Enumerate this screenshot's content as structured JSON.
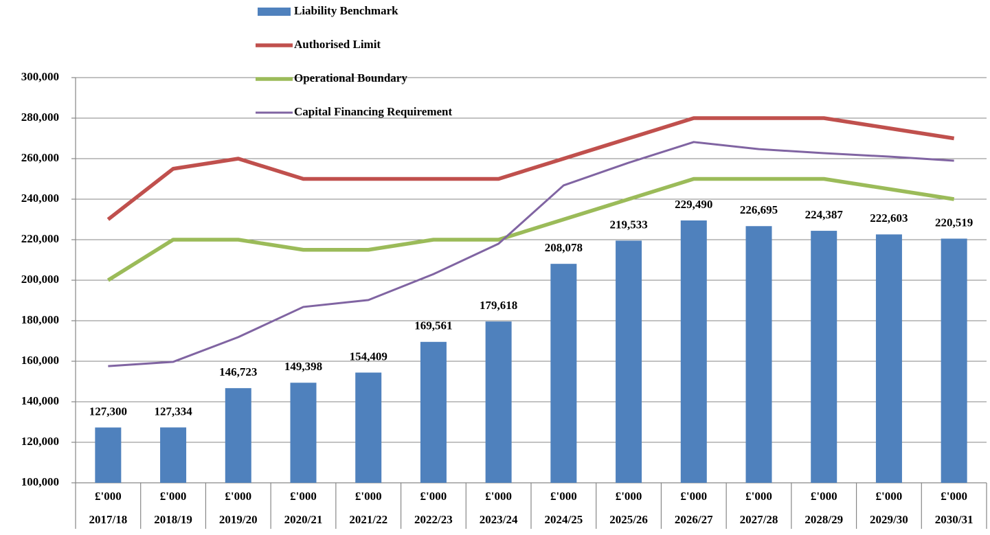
{
  "chart_data": {
    "type": "bar-line",
    "categories": [
      "2017/18",
      "2018/19",
      "2019/20",
      "2020/21",
      "2021/22",
      "2022/23",
      "2023/24",
      "2024/25",
      "2025/26",
      "2026/27",
      "2027/28",
      "2028/29",
      "2029/30",
      "2030/31"
    ],
    "category_unit": "£'000",
    "series": [
      {
        "name": "Liability Benchmark",
        "type": "bar",
        "color": "#4f81bd",
        "values": [
          127300,
          127334,
          146723,
          149398,
          154409,
          169561,
          179618,
          208078,
          219533,
          229490,
          226695,
          224387,
          222603,
          220519
        ],
        "value_labels": [
          "127,300",
          "127,334",
          "146,723",
          "149,398",
          "154,409",
          "169,561",
          "179,618",
          "208,078",
          "219,533",
          "229,490",
          "226,695",
          "224,387",
          "222,603",
          "220,519"
        ]
      },
      {
        "name": "Authorised Limit",
        "type": "line",
        "color": "#c0504d",
        "values": [
          230000,
          255000,
          260000,
          250000,
          250000,
          250000,
          250000,
          260000,
          270000,
          280000,
          280000,
          280000,
          275000,
          270000
        ]
      },
      {
        "name": "Operational Boundary",
        "type": "line",
        "color": "#9bbb59",
        "values": [
          200000,
          220000,
          220000,
          215000,
          215000,
          220000,
          220000,
          230000,
          240000,
          250000,
          250000,
          250000,
          245000,
          240000
        ]
      },
      {
        "name": "Capital Financing Requirement",
        "type": "line",
        "color": "#8064a2",
        "values": [
          157600,
          159700,
          171900,
          186800,
          190200,
          203000,
          218000,
          246800,
          258000,
          268200,
          264700,
          262700,
          261000,
          259000
        ]
      }
    ],
    "ylim": [
      100000,
      300000
    ],
    "yticks": [
      {
        "value": 100000,
        "label": "100,000"
      },
      {
        "value": 120000,
        "label": "120,000"
      },
      {
        "value": 140000,
        "label": "140,000"
      },
      {
        "value": 160000,
        "label": "160,000"
      },
      {
        "value": 180000,
        "label": "180,000"
      },
      {
        "value": 200000,
        "label": "200,000"
      },
      {
        "value": 220000,
        "label": "220,000"
      },
      {
        "value": 240000,
        "label": "240,000"
      },
      {
        "value": 260000,
        "label": "260,000"
      },
      {
        "value": 280000,
        "label": "280,000"
      },
      {
        "value": 300000,
        "label": "300,000"
      }
    ],
    "grid": true,
    "legend": "top"
  }
}
